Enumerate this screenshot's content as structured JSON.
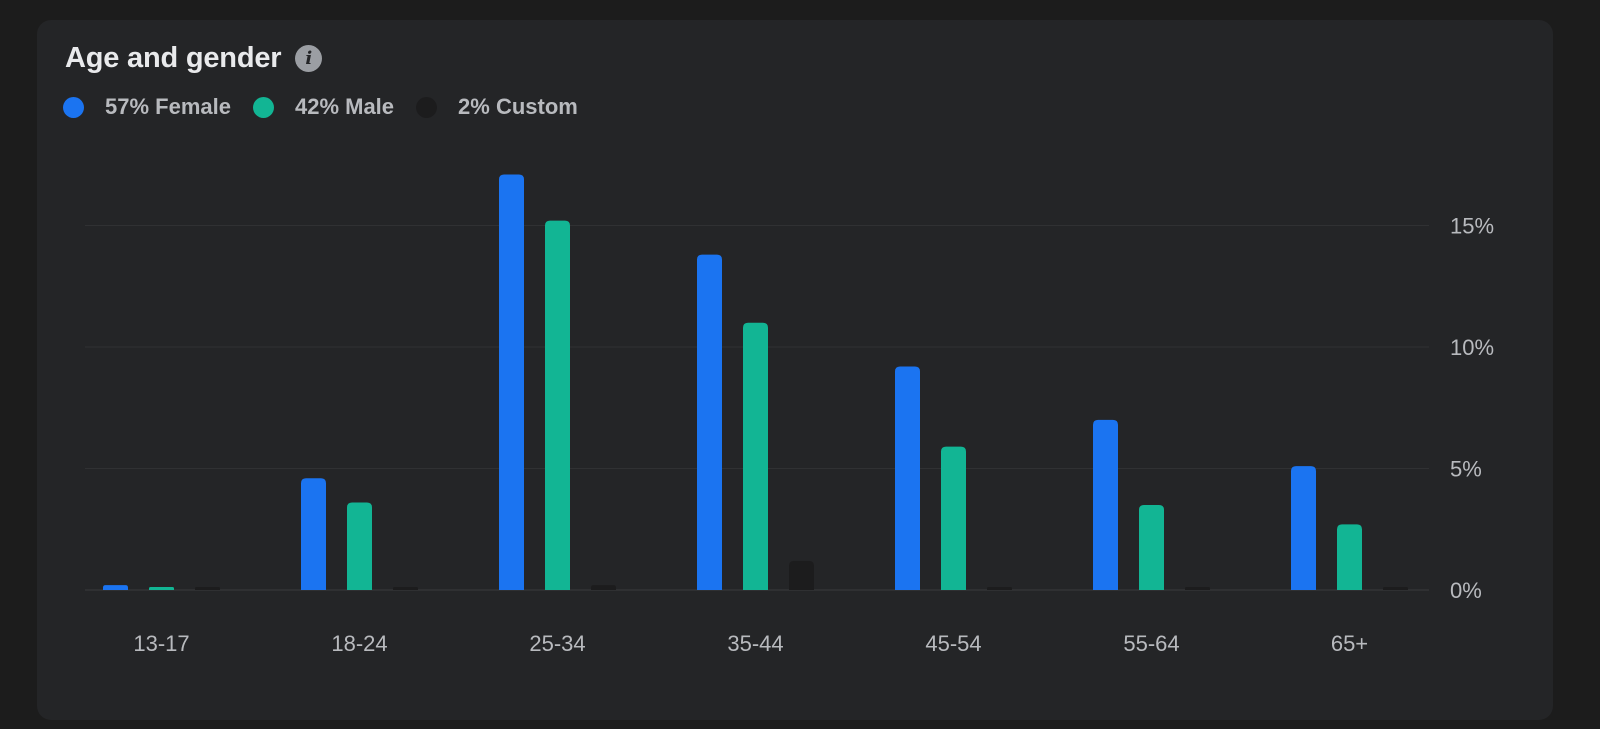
{
  "title": "Age and gender",
  "info_icon": "info-icon",
  "legend": [
    {
      "label": "57% Female",
      "color": "#1b74f1"
    },
    {
      "label": "42% Male",
      "color": "#12b594"
    },
    {
      "label": "2% Custom",
      "color": "#1c1c1d"
    }
  ],
  "chart_data": {
    "type": "bar",
    "categories": [
      "13-17",
      "18-24",
      "25-34",
      "35-44",
      "45-54",
      "55-64",
      "65+"
    ],
    "series": [
      {
        "name": "57% Female",
        "color": "#1b74f1",
        "values": [
          0.2,
          4.6,
          17.1,
          13.8,
          9.2,
          7.0,
          5.1
        ]
      },
      {
        "name": "42% Male",
        "color": "#12b594",
        "values": [
          0.1,
          3.6,
          15.2,
          11.0,
          5.9,
          3.5,
          2.7
        ]
      },
      {
        "name": "2% Custom",
        "color": "#1c1c1d",
        "values": [
          0.0,
          0.1,
          0.2,
          1.2,
          0.05,
          0.03,
          0.03
        ]
      }
    ],
    "y_ticks": [
      {
        "value": 0,
        "label": "0%"
      },
      {
        "value": 5,
        "label": "5%"
      },
      {
        "value": 10,
        "label": "10%"
      },
      {
        "value": 15,
        "label": "15%"
      }
    ],
    "ylim": [
      0,
      17.5
    ],
    "y_axis_position": "right",
    "grid": true
  }
}
